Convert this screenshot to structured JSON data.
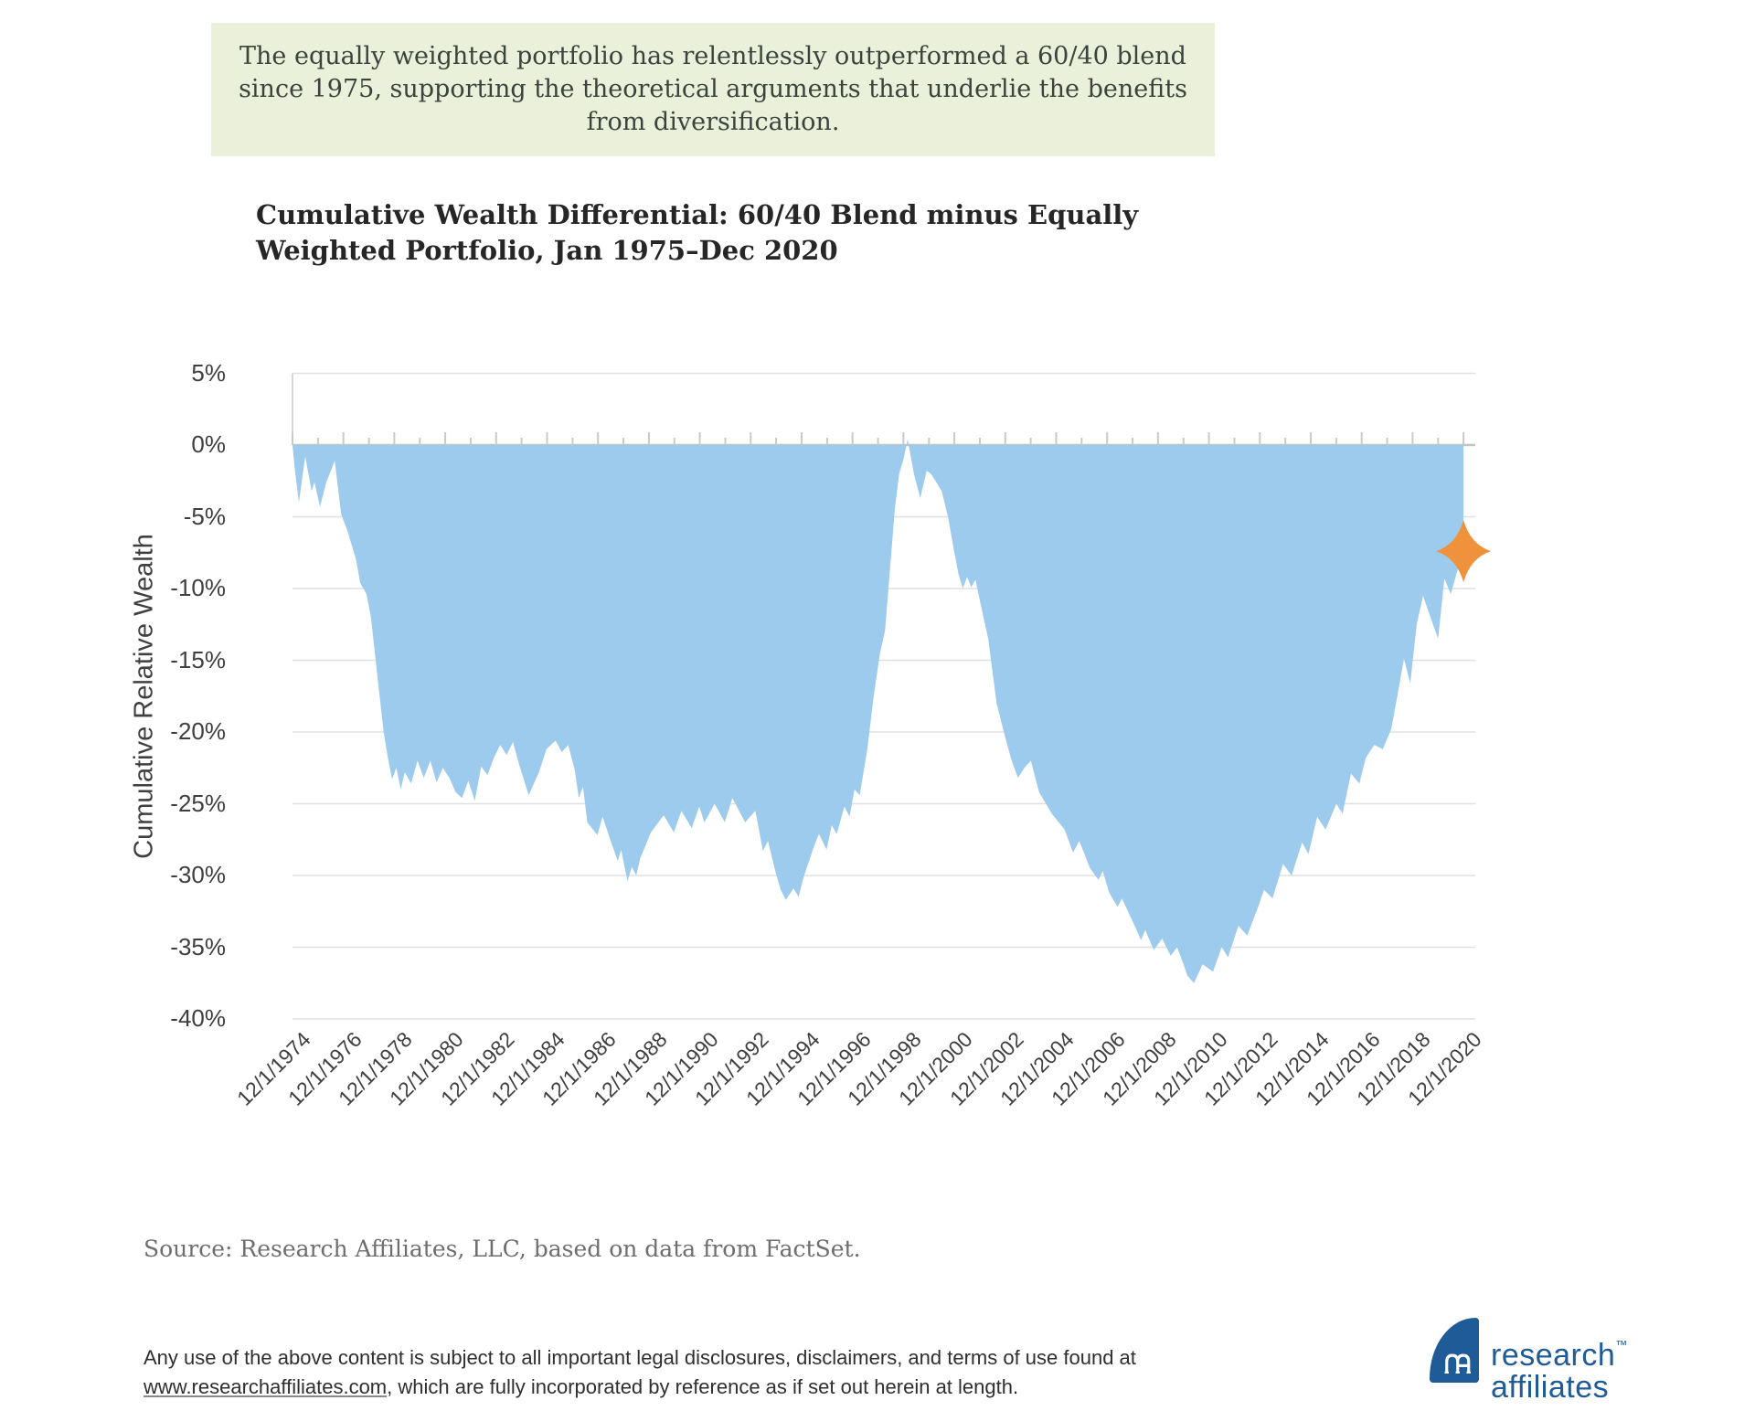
{
  "banner": {
    "lines": [
      "The equally weighted portfolio has relentlessly outperformed a 60/40 blend",
      "since 1975, supporting the theoretical arguments that underlie the benefits",
      "from diversification."
    ],
    "background_color": "#eaf0da"
  },
  "chart": {
    "title_lines": [
      "Cumulative Wealth Differential: 60/40 Blend minus Equally",
      "Weighted Portfolio, Jan 1975–Dec 2020"
    ]
  },
  "chart_data": {
    "type": "area",
    "title": "Cumulative Wealth Differential: 60/40 Blend minus Equally Weighted Portfolio, Jan 1975–Dec 2020",
    "xlabel": "",
    "ylabel": "Cumulative Relative Wealth",
    "ylim": [
      -40,
      5
    ],
    "y_ticks": [
      5,
      0,
      -5,
      -10,
      -15,
      -20,
      -25,
      -30,
      -35,
      -40
    ],
    "y_tick_suffix": "%",
    "x_tick_labels": [
      "12/1/1974",
      "12/1/1976",
      "12/1/1978",
      "12/1/1980",
      "12/1/1982",
      "12/1/1984",
      "12/1/1986",
      "12/1/1988",
      "12/1/1990",
      "12/1/1992",
      "12/1/1994",
      "12/1/1996",
      "12/1/1998",
      "12/1/2000",
      "12/1/2002",
      "12/1/2004",
      "12/1/2006",
      "12/1/2008",
      "12/1/2010",
      "12/1/2012",
      "12/1/2014",
      "12/1/2016",
      "12/1/2018",
      "12/1/2020"
    ],
    "x_range_years": [
      1974.92,
      2020.92
    ],
    "grid": true,
    "legend": false,
    "area_color": "#9dcbee",
    "gridline_color": "#e0e0e0",
    "zero_line_color": "#c3c3c3",
    "tick_color": "#c9c9c9",
    "marker": {
      "shape": "four-point-star",
      "color": "#f0913c",
      "x": 2020.92,
      "y": -7.4,
      "meaning": "final data point, Dec 2020"
    },
    "series": [
      {
        "name": "Cumulative wealth differential: 60/40 blend minus equally weighted portfolio (%)",
        "points": [
          [
            1974.92,
            0
          ],
          [
            1975.0,
            -1.5
          ],
          [
            1975.17,
            -4.0
          ],
          [
            1975.42,
            -0.8
          ],
          [
            1975.67,
            -3.2
          ],
          [
            1975.78,
            -2.6
          ],
          [
            1976.0,
            -4.3
          ],
          [
            1976.25,
            -2.6
          ],
          [
            1976.58,
            -1.1
          ],
          [
            1976.83,
            -4.8
          ],
          [
            1977.08,
            -6.0
          ],
          [
            1977.42,
            -8.0
          ],
          [
            1977.58,
            -9.6
          ],
          [
            1977.83,
            -10.4
          ],
          [
            1978.0,
            -12.0
          ],
          [
            1978.25,
            -16.0
          ],
          [
            1978.5,
            -20.0
          ],
          [
            1978.67,
            -21.8
          ],
          [
            1978.83,
            -23.3
          ],
          [
            1979.0,
            -22.5
          ],
          [
            1979.17,
            -24.0
          ],
          [
            1979.33,
            -22.8
          ],
          [
            1979.58,
            -23.6
          ],
          [
            1979.83,
            -22.0
          ],
          [
            1980.08,
            -23.2
          ],
          [
            1980.33,
            -22.0
          ],
          [
            1980.58,
            -23.5
          ],
          [
            1980.83,
            -22.5
          ],
          [
            1981.08,
            -23.2
          ],
          [
            1981.33,
            -24.2
          ],
          [
            1981.58,
            -24.6
          ],
          [
            1981.83,
            -23.4
          ],
          [
            1982.08,
            -24.8
          ],
          [
            1982.33,
            -22.4
          ],
          [
            1982.58,
            -23.0
          ],
          [
            1982.83,
            -21.8
          ],
          [
            1983.08,
            -20.9
          ],
          [
            1983.33,
            -21.6
          ],
          [
            1983.58,
            -20.7
          ],
          [
            1983.83,
            -22.3
          ],
          [
            1984.2,
            -24.4
          ],
          [
            1984.6,
            -22.8
          ],
          [
            1984.9,
            -21.2
          ],
          [
            1985.25,
            -20.6
          ],
          [
            1985.5,
            -21.4
          ],
          [
            1985.75,
            -20.9
          ],
          [
            1986.0,
            -22.6
          ],
          [
            1986.17,
            -24.6
          ],
          [
            1986.33,
            -23.8
          ],
          [
            1986.5,
            -26.3
          ],
          [
            1986.9,
            -27.2
          ],
          [
            1987.1,
            -25.9
          ],
          [
            1987.42,
            -27.6
          ],
          [
            1987.7,
            -29.0
          ],
          [
            1987.83,
            -28.2
          ],
          [
            1988.08,
            -30.4
          ],
          [
            1988.25,
            -29.4
          ],
          [
            1988.42,
            -30.0
          ],
          [
            1988.58,
            -28.8
          ],
          [
            1989.0,
            -27.0
          ],
          [
            1989.5,
            -25.8
          ],
          [
            1989.9,
            -27.0
          ],
          [
            1990.2,
            -25.5
          ],
          [
            1990.6,
            -26.7
          ],
          [
            1990.9,
            -25.2
          ],
          [
            1991.1,
            -26.3
          ],
          [
            1991.5,
            -25.0
          ],
          [
            1991.9,
            -26.3
          ],
          [
            1992.2,
            -24.6
          ],
          [
            1992.7,
            -26.3
          ],
          [
            1993.1,
            -25.5
          ],
          [
            1993.4,
            -28.3
          ],
          [
            1993.6,
            -27.6
          ],
          [
            1993.9,
            -29.8
          ],
          [
            1994.1,
            -31.0
          ],
          [
            1994.3,
            -31.7
          ],
          [
            1994.6,
            -30.9
          ],
          [
            1994.8,
            -31.5
          ],
          [
            1995.0,
            -30.1
          ],
          [
            1995.4,
            -28.0
          ],
          [
            1995.6,
            -27.1
          ],
          [
            1995.9,
            -28.2
          ],
          [
            1996.1,
            -26.5
          ],
          [
            1996.3,
            -27.1
          ],
          [
            1996.6,
            -25.2
          ],
          [
            1996.8,
            -25.9
          ],
          [
            1997.0,
            -24.0
          ],
          [
            1997.2,
            -24.4
          ],
          [
            1997.5,
            -21.2
          ],
          [
            1997.75,
            -17.5
          ],
          [
            1998.0,
            -14.5
          ],
          [
            1998.2,
            -12.9
          ],
          [
            1998.42,
            -8.0
          ],
          [
            1998.58,
            -4.5
          ],
          [
            1998.75,
            -2.0
          ],
          [
            1998.92,
            -1.0
          ],
          [
            1999.08,
            0.4
          ],
          [
            1999.33,
            -2.0
          ],
          [
            1999.58,
            -3.7
          ],
          [
            1999.83,
            -1.8
          ],
          [
            2000.0,
            -2.0
          ],
          [
            2000.42,
            -3.2
          ],
          [
            2000.67,
            -5.0
          ],
          [
            2000.92,
            -7.5
          ],
          [
            2001.08,
            -9.0
          ],
          [
            2001.25,
            -10.0
          ],
          [
            2001.42,
            -9.2
          ],
          [
            2001.58,
            -9.9
          ],
          [
            2001.75,
            -9.4
          ],
          [
            2002.0,
            -11.5
          ],
          [
            2002.25,
            -13.5
          ],
          [
            2002.58,
            -18.0
          ],
          [
            2002.92,
            -20.4
          ],
          [
            2003.17,
            -22.0
          ],
          [
            2003.42,
            -23.2
          ],
          [
            2003.67,
            -22.5
          ],
          [
            2003.92,
            -22.0
          ],
          [
            2004.25,
            -24.2
          ],
          [
            2004.75,
            -25.7
          ],
          [
            2005.25,
            -26.8
          ],
          [
            2005.58,
            -28.4
          ],
          [
            2005.83,
            -27.6
          ],
          [
            2006.25,
            -29.5
          ],
          [
            2006.58,
            -30.3
          ],
          [
            2006.75,
            -29.7
          ],
          [
            2007.0,
            -31.2
          ],
          [
            2007.33,
            -32.2
          ],
          [
            2007.5,
            -31.6
          ],
          [
            2008.0,
            -33.5
          ],
          [
            2008.25,
            -34.5
          ],
          [
            2008.42,
            -33.8
          ],
          [
            2008.75,
            -35.2
          ],
          [
            2009.08,
            -34.4
          ],
          [
            2009.42,
            -35.6
          ],
          [
            2009.67,
            -35.0
          ],
          [
            2009.92,
            -36.2
          ],
          [
            2010.08,
            -37.0
          ],
          [
            2010.33,
            -37.5
          ],
          [
            2010.67,
            -36.2
          ],
          [
            2011.08,
            -36.7
          ],
          [
            2011.42,
            -35.0
          ],
          [
            2011.67,
            -35.7
          ],
          [
            2012.08,
            -33.5
          ],
          [
            2012.42,
            -34.2
          ],
          [
            2012.83,
            -32.3
          ],
          [
            2013.08,
            -31.0
          ],
          [
            2013.42,
            -31.6
          ],
          [
            2013.83,
            -29.2
          ],
          [
            2014.17,
            -30.0
          ],
          [
            2014.58,
            -27.7
          ],
          [
            2014.83,
            -28.5
          ],
          [
            2015.17,
            -25.9
          ],
          [
            2015.5,
            -26.8
          ],
          [
            2015.92,
            -25.0
          ],
          [
            2016.17,
            -25.7
          ],
          [
            2016.5,
            -22.9
          ],
          [
            2016.83,
            -23.6
          ],
          [
            2017.08,
            -21.8
          ],
          [
            2017.42,
            -20.9
          ],
          [
            2017.75,
            -21.2
          ],
          [
            2018.08,
            -19.8
          ],
          [
            2018.33,
            -17.4
          ],
          [
            2018.58,
            -14.9
          ],
          [
            2018.83,
            -16.6
          ],
          [
            2019.08,
            -12.5
          ],
          [
            2019.33,
            -10.5
          ],
          [
            2019.58,
            -11.8
          ],
          [
            2019.92,
            -13.5
          ],
          [
            2020.17,
            -9.3
          ],
          [
            2020.42,
            -10.4
          ],
          [
            2020.67,
            -8.8
          ],
          [
            2020.92,
            -7.4
          ]
        ]
      }
    ]
  },
  "source": {
    "text": "Source: Research Affiliates, LLC, based on data from FactSet."
  },
  "disclaimer": {
    "line1": "Any use of the above content is subject to all important legal disclosures, disclaimers, and terms of use found at",
    "line2_link": "www.researchaffiliates.com",
    "line2_rest": ", which are fully incorporated by reference as if set out herein at length."
  },
  "logo": {
    "line1": "research",
    "tm": "™",
    "line2": "affiliates",
    "brand_color": "#1e5b97",
    "monogram": "ra-monogram"
  }
}
